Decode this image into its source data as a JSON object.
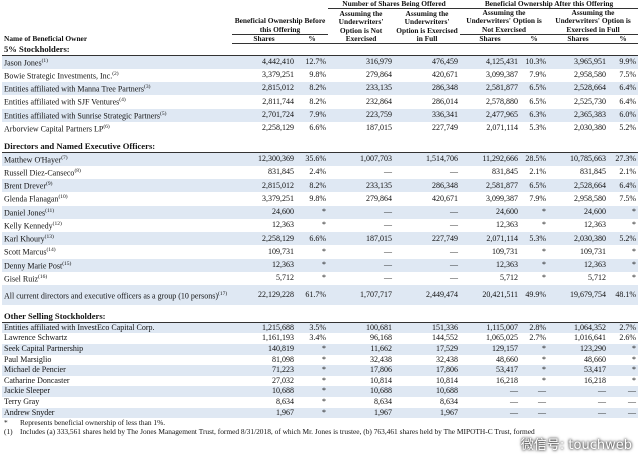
{
  "header": {
    "name_col": "Name of Beneficial Owner",
    "before": "Beneficial Ownership Before this Offering",
    "offered": "Number of Shares Being Offered",
    "after": "Beneficial Ownership After this Offering",
    "not_exercised": "Assuming the Underwriters' Option is Not Exercised",
    "exercised": "Assuming the Underwriters' Option is Exercised in Full",
    "shares": "Shares",
    "pct": "%"
  },
  "sections": [
    {
      "title": "5% Stockholders:",
      "rows": [
        {
          "name": "Jason Jones",
          "note": "(1)",
          "cells": [
            "4,442,410",
            "12.7%",
            "316,979",
            "476,459",
            "4,125,431",
            "10.3%",
            "3,965,951",
            "9.9%"
          ]
        },
        {
          "name": "Bowie Strategic Investments, Inc.",
          "note": "(2)",
          "cells": [
            "3,379,251",
            "9.8%",
            "279,864",
            "420,671",
            "3,099,387",
            "7.9%",
            "2,958,580",
            "7.5%"
          ]
        },
        {
          "name": "Entities affiliated with Manna Tree Partners",
          "note": "(3)",
          "cells": [
            "2,815,012",
            "8.2%",
            "233,135",
            "286,348",
            "2,581,877",
            "6.5%",
            "2,528,664",
            "6.4%"
          ]
        },
        {
          "name": "Entities affiliated with SJF Ventures",
          "note": "(4)",
          "cells": [
            "2,811,744",
            "8.2%",
            "232,864",
            "286,014",
            "2,578,880",
            "6.5%",
            "2,525,730",
            "6.4%"
          ]
        },
        {
          "name": "Entities affiliated with Sunrise Strategic Partners",
          "note": "(5)",
          "cells": [
            "2,701,724",
            "7.9%",
            "223,759",
            "336,341",
            "2,477,965",
            "6.3%",
            "2,365,383",
            "6.0%"
          ]
        },
        {
          "name": "Arborview Capital Partners LP",
          "note": "(6)",
          "cells": [
            "2,258,129",
            "6.6%",
            "187,015",
            "227,749",
            "2,071,114",
            "5.3%",
            "2,030,380",
            "5.2%"
          ]
        }
      ]
    },
    {
      "title": "Directors and Named Executive Officers:",
      "rows": [
        {
          "name": "Matthew O'Hayer",
          "note": "(7)",
          "cells": [
            "12,300,369",
            "35.6%",
            "1,007,703",
            "1,514,706",
            "11,292,666",
            "28.5%",
            "10,785,663",
            "27.3%"
          ]
        },
        {
          "name": "Russell Diez-Canseco",
          "note": "(8)",
          "cells": [
            "831,845",
            "2.4%",
            "—",
            "—",
            "831,845",
            "2.1%",
            "831,845",
            "2.1%"
          ]
        },
        {
          "name": "Brent Drever",
          "note": "(9)",
          "cells": [
            "2,815,012",
            "8.2%",
            "233,135",
            "286,348",
            "2,581,877",
            "6.5%",
            "2,528,664",
            "6.4%"
          ]
        },
        {
          "name": "Glenda Flanagan",
          "note": "(10)",
          "cells": [
            "3,379,251",
            "9.8%",
            "279,864",
            "420,671",
            "3,099,387",
            "7.9%",
            "2,958,580",
            "7.5%"
          ]
        },
        {
          "name": "Daniel Jones",
          "note": "(11)",
          "cells": [
            "24,600",
            "*",
            "—",
            "—",
            "24,600",
            "*",
            "24,600",
            "*"
          ]
        },
        {
          "name": "Kelly Kennedy",
          "note": "(12)",
          "cells": [
            "12,363",
            "*",
            "—",
            "—",
            "12,363",
            "*",
            "12,363",
            "*"
          ]
        },
        {
          "name": "Karl Khoury",
          "note": "(13)",
          "cells": [
            "2,258,129",
            "6.6%",
            "187,015",
            "227,749",
            "2,071,114",
            "5.3%",
            "2,030,380",
            "5.2%"
          ]
        },
        {
          "name": "Scott Marcus",
          "note": "(14)",
          "cells": [
            "109,731",
            "*",
            "—",
            "—",
            "109,731",
            "*",
            "109,731",
            "*"
          ]
        },
        {
          "name": "Denny Marie Post",
          "note": "(15)",
          "cells": [
            "12,363",
            "*",
            "—",
            "—",
            "12,363",
            "*",
            "12,363",
            "*"
          ]
        },
        {
          "name": "Gisel Ruiz",
          "note": "(16)",
          "cells": [
            "5,712",
            "*",
            "—",
            "—",
            "5,712",
            "*",
            "5,712",
            "*"
          ]
        },
        {
          "name": "All current directors and executive officers as a group (10 persons)",
          "note": "(17)",
          "cells": [
            "22,129,228",
            "61.7%",
            "1,707,717",
            "2,449,474",
            "20,421,511",
            "49.9%",
            "19,679,754",
            "48.1%"
          ]
        }
      ]
    },
    {
      "title": "Other Selling Stockholders:",
      "rows": [
        {
          "name": "Entities affiliated with InvestEco Capital Corp.",
          "cells": [
            "1,215,688",
            "3.5%",
            "100,681",
            "151,336",
            "1,115,007",
            "2.8%",
            "1,064,352",
            "2.7%"
          ]
        },
        {
          "name": "Lawrence Schwartz",
          "cells": [
            "1,161,193",
            "3.4%",
            "96,168",
            "144,552",
            "1,065,025",
            "2.7%",
            "1,016,641",
            "2.6%"
          ]
        },
        {
          "name": "Seek Capital Partnership",
          "cells": [
            "140,819",
            "*",
            "11,662",
            "17,529",
            "129,157",
            "*",
            "123,290",
            "*"
          ]
        },
        {
          "name": "Paul Marsiglio",
          "cells": [
            "81,098",
            "*",
            "32,438",
            "32,438",
            "48,660",
            "*",
            "48,660",
            "*"
          ]
        },
        {
          "name": "Michael de Pencier",
          "cells": [
            "71,223",
            "*",
            "17,806",
            "17,806",
            "53,417",
            "*",
            "53,417",
            "*"
          ]
        },
        {
          "name": "Catharine Doncaster",
          "cells": [
            "27,032",
            "*",
            "10,814",
            "10,814",
            "16,218",
            "*",
            "16,218",
            "*"
          ]
        },
        {
          "name": "Jackie Sleeper",
          "cells": [
            "10,688",
            "*",
            "10,688",
            "10,688",
            "—",
            "—",
            "—",
            "—"
          ]
        },
        {
          "name": "Terry Gray",
          "cells": [
            "8,634",
            "*",
            "8,634",
            "8,634",
            "—",
            "—",
            "—",
            "—"
          ]
        },
        {
          "name": "Andrew Snyder",
          "cells": [
            "1,967",
            "*",
            "1,967",
            "1,967",
            "—",
            "—",
            "—",
            "—"
          ]
        }
      ]
    }
  ],
  "footnotes": [
    {
      "mark": "*",
      "text": "Represents beneficial ownership of less than 1%."
    },
    {
      "mark": "(1)",
      "text": "Includes (a) 333,561 shares held by The Jones Management Trust, formed 8/31/2018, of which Mr. Jones is trustee, (b) 763,461 shares held by The MIPOTH-C Trust, formed"
    }
  ],
  "watermark": "微信号: touchweb"
}
